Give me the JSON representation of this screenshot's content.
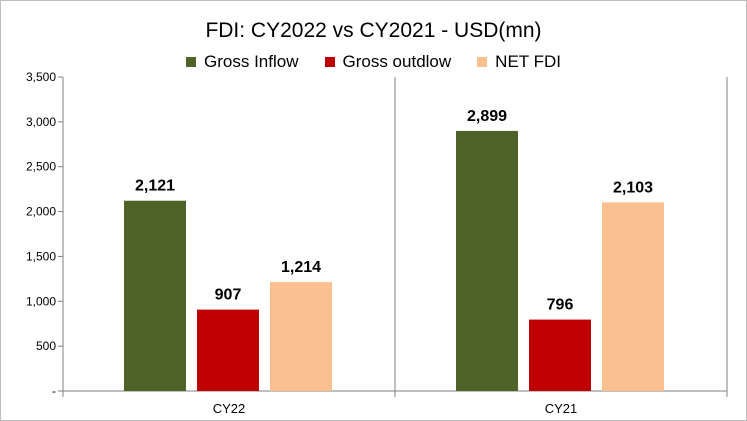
{
  "chart_data": {
    "type": "bar",
    "title": "FDI: CY2022 vs CY2021 - USD(mn)",
    "categories": [
      "CY22",
      "CY21"
    ],
    "series": [
      {
        "name": "Gross Inflow",
        "color": "#4f6228",
        "values": [
          2121,
          2899
        ],
        "labels": [
          "2,121",
          "2,899"
        ]
      },
      {
        "name": "Gross outdlow",
        "color": "#c00000",
        "values": [
          907,
          796
        ],
        "labels": [
          "907",
          "796"
        ]
      },
      {
        "name": "NET FDI",
        "color": "#fac090",
        "values": [
          1214,
          2103
        ],
        "labels": [
          "1,214",
          "2,103"
        ]
      }
    ],
    "ylim": [
      0,
      3500
    ],
    "yticks": [
      0,
      500,
      1000,
      1500,
      2000,
      2500,
      3000,
      3500
    ],
    "ytick_labels": [
      "-",
      "500",
      "1,000",
      "1,500",
      "2,000",
      "2,500",
      "3,000",
      "3,500"
    ],
    "xlabel": "",
    "ylabel": "",
    "grid": false,
    "legend_position": "top"
  }
}
